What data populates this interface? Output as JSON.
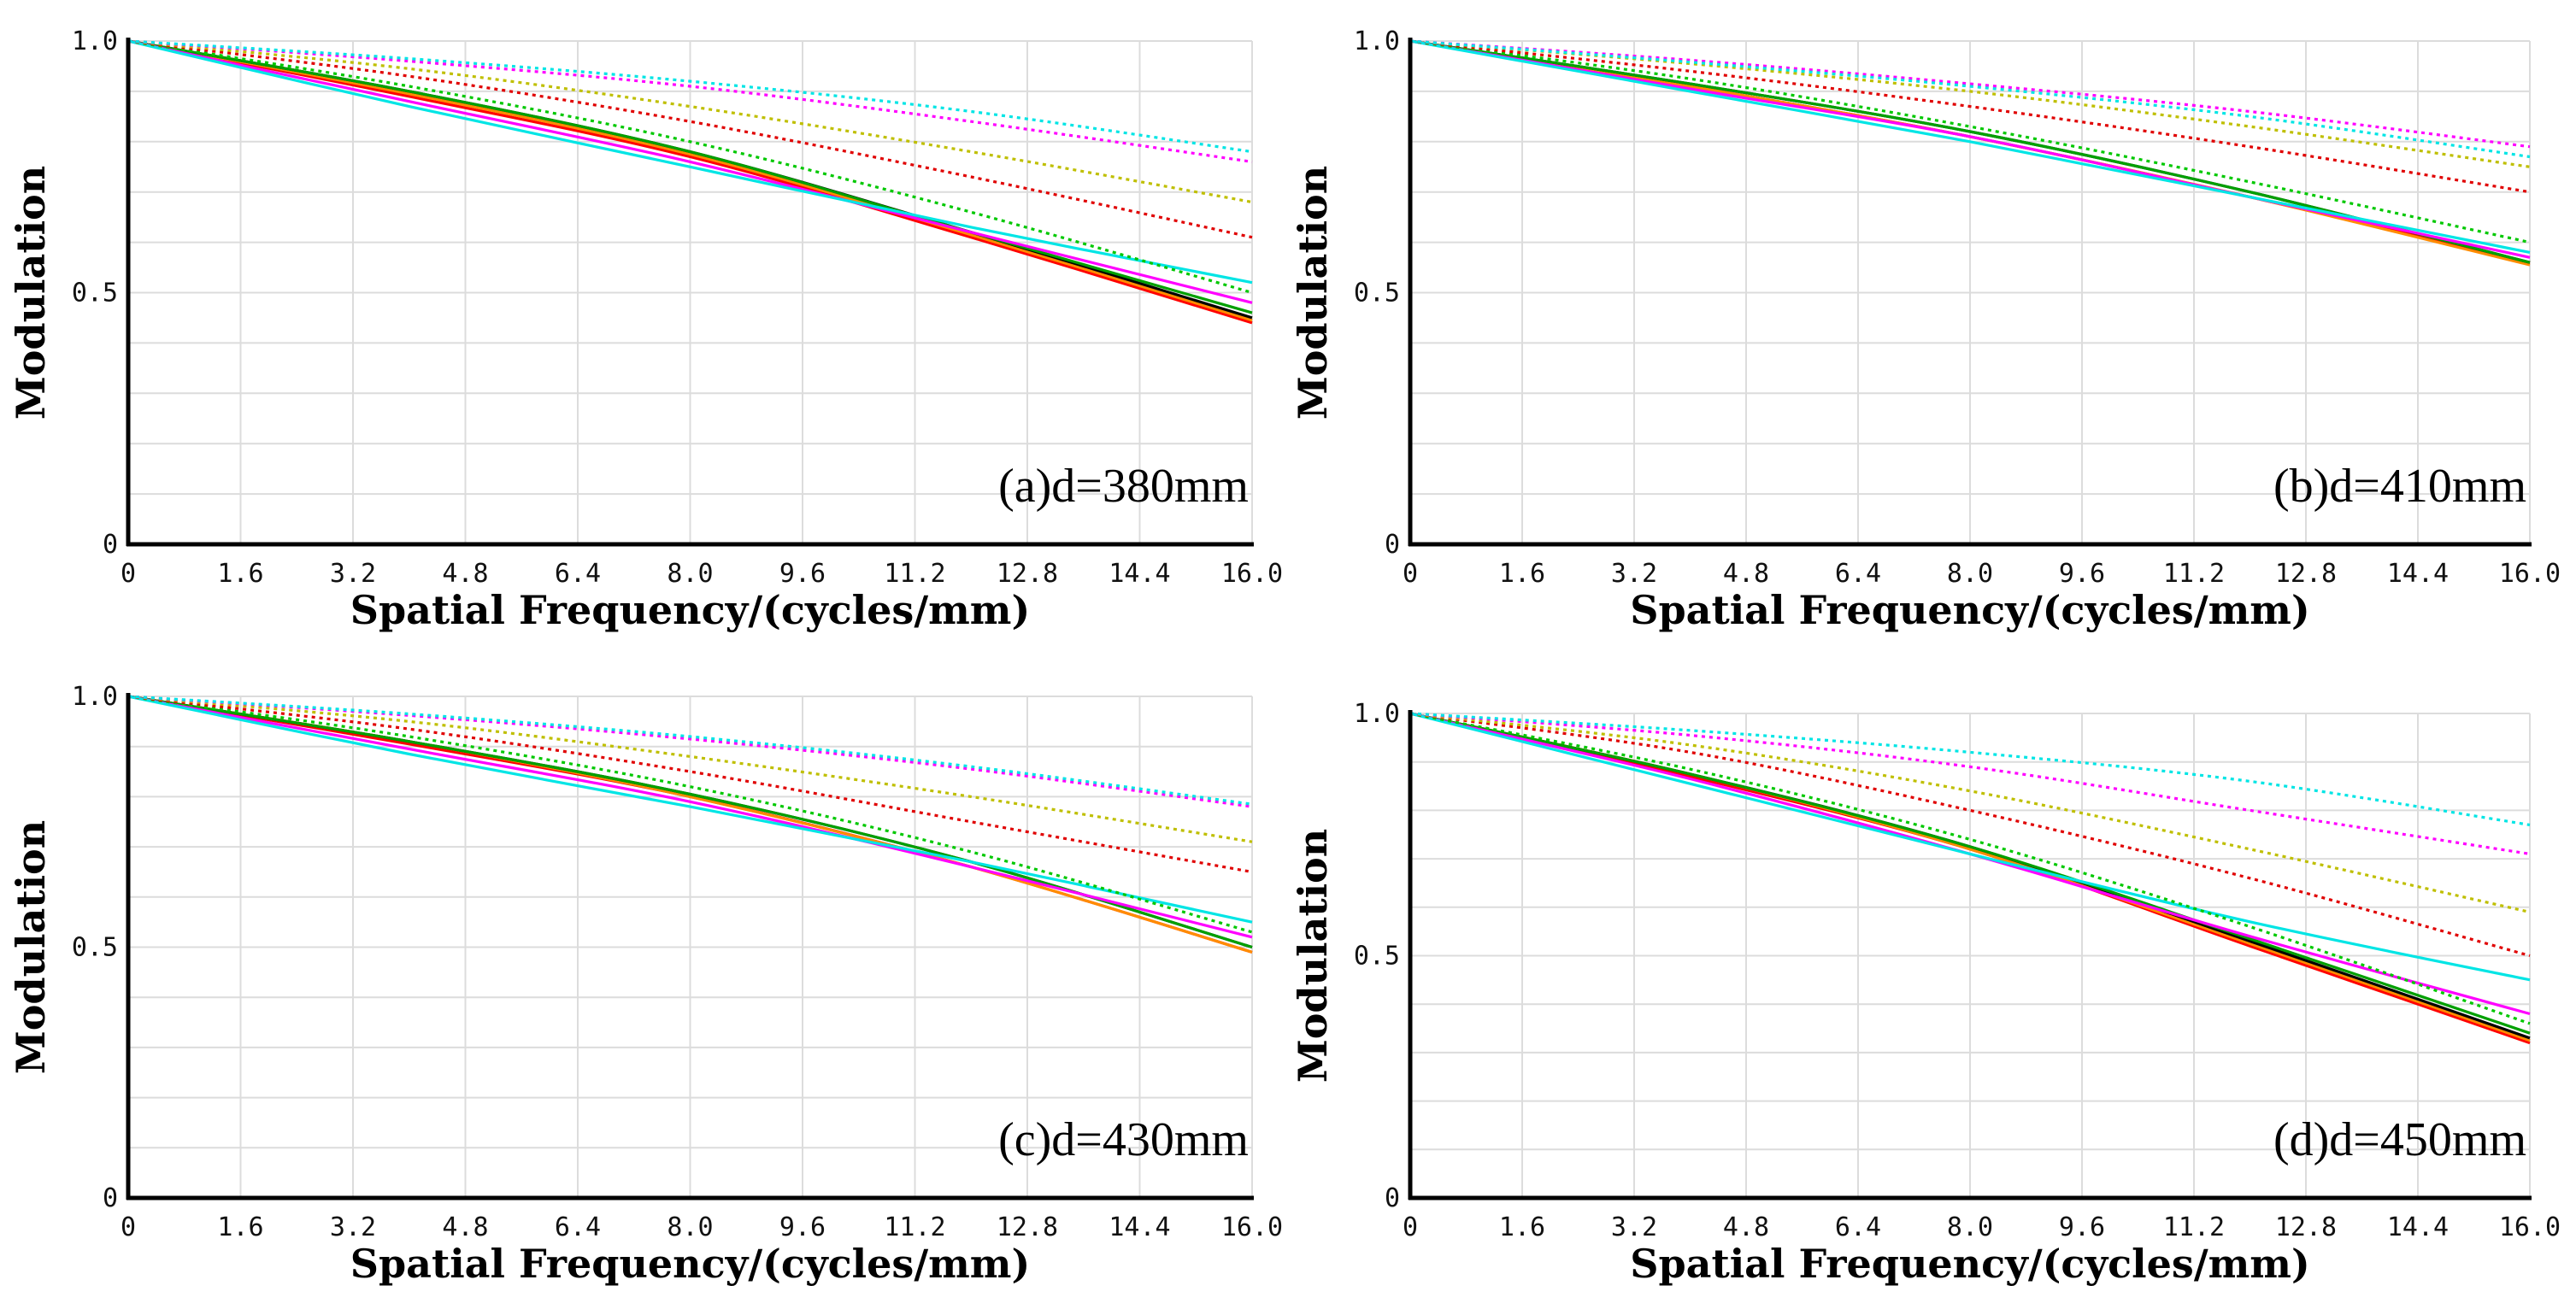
{
  "chart_data": [
    {
      "type": "line",
      "annotation": "(a)d=380mm",
      "xlabel": "Spatial Frequency/(cycles/mm)",
      "ylabel": "Modulation",
      "xlim": [
        0,
        16
      ],
      "ylim": [
        0,
        1
      ],
      "xticks": [
        "0",
        "1.6",
        "3.2",
        "4.8",
        "6.4",
        "8.0",
        "9.6",
        "11.2",
        "12.8",
        "14.4",
        "16.0"
      ],
      "yticks": [
        "0",
        "0.5",
        "1.0"
      ],
      "grid": true,
      "legend": "none",
      "series": [
        {
          "color": "#ff0000",
          "dash": false,
          "x": [
            0,
            4,
            8,
            12,
            16
          ],
          "y": [
            1.0,
            0.89,
            0.77,
            0.61,
            0.44
          ]
        },
        {
          "color": "#ff8c00",
          "dash": false,
          "x": [
            0,
            4,
            8,
            12,
            16
          ],
          "y": [
            1.0,
            0.895,
            0.775,
            0.615,
            0.445
          ]
        },
        {
          "color": "#000000",
          "dash": false,
          "x": [
            0,
            4,
            8,
            12,
            16
          ],
          "y": [
            1.0,
            0.9,
            0.78,
            0.62,
            0.45
          ]
        },
        {
          "color": "#00a000",
          "dash": false,
          "x": [
            0,
            4,
            8,
            12,
            16
          ],
          "y": [
            1.0,
            0.9,
            0.78,
            0.62,
            0.46
          ]
        },
        {
          "color": "#ff00ff",
          "dash": false,
          "x": [
            0,
            4,
            8,
            12,
            16
          ],
          "y": [
            1.0,
            0.88,
            0.76,
            0.62,
            0.48
          ]
        },
        {
          "color": "#00e5e5",
          "dash": false,
          "x": [
            0,
            4,
            8,
            12,
            16
          ],
          "y": [
            1.0,
            0.87,
            0.75,
            0.63,
            0.52
          ]
        },
        {
          "color": "#00c800",
          "dash": true,
          "x": [
            0,
            4,
            8,
            12,
            16
          ],
          "y": [
            1.0,
            0.91,
            0.8,
            0.66,
            0.5
          ]
        },
        {
          "color": "#e00000",
          "dash": true,
          "x": [
            0,
            4,
            8,
            12,
            16
          ],
          "y": [
            1.0,
            0.93,
            0.84,
            0.73,
            0.61
          ]
        },
        {
          "color": "#bfbf00",
          "dash": true,
          "x": [
            0,
            4,
            8,
            12,
            16
          ],
          "y": [
            1.0,
            0.945,
            0.87,
            0.78,
            0.68
          ]
        },
        {
          "color": "#ff00ff",
          "dash": true,
          "x": [
            0,
            4,
            8,
            12,
            16
          ],
          "y": [
            1.0,
            0.96,
            0.91,
            0.84,
            0.76
          ]
        },
        {
          "color": "#00e5e5",
          "dash": true,
          "x": [
            0,
            4,
            8,
            12,
            16
          ],
          "y": [
            1.0,
            0.965,
            0.92,
            0.86,
            0.78
          ]
        }
      ]
    },
    {
      "type": "line",
      "annotation": "(b)d=410mm",
      "xlabel": "Spatial Frequency/(cycles/mm)",
      "ylabel": "Modulation",
      "xlim": [
        0,
        16
      ],
      "ylim": [
        0,
        1
      ],
      "xticks": [
        "0",
        "1.6",
        "3.2",
        "4.8",
        "6.4",
        "8.0",
        "9.6",
        "11.2",
        "12.8",
        "14.4",
        "16.0"
      ],
      "yticks": [
        "0",
        "0.5",
        "1.0"
      ],
      "grid": true,
      "legend": "none",
      "series": [
        {
          "color": "#ff0000",
          "dash": false,
          "x": [
            0,
            4,
            8,
            12,
            16
          ],
          "y": [
            1.0,
            0.91,
            0.81,
            0.69,
            0.56
          ]
        },
        {
          "color": "#ff8c00",
          "dash": false,
          "x": [
            0,
            4,
            8,
            12,
            16
          ],
          "y": [
            1.0,
            0.91,
            0.81,
            0.69,
            0.555
          ]
        },
        {
          "color": "#000000",
          "dash": false,
          "x": [
            0,
            4,
            8,
            12,
            16
          ],
          "y": [
            1.0,
            0.915,
            0.82,
            0.7,
            0.56
          ]
        },
        {
          "color": "#00a000",
          "dash": false,
          "x": [
            0,
            4,
            8,
            12,
            16
          ],
          "y": [
            1.0,
            0.915,
            0.82,
            0.7,
            0.56
          ]
        },
        {
          "color": "#ff00ff",
          "dash": false,
          "x": [
            0,
            4,
            8,
            12,
            16
          ],
          "y": [
            1.0,
            0.905,
            0.81,
            0.69,
            0.57
          ]
        },
        {
          "color": "#00e5e5",
          "dash": false,
          "x": [
            0,
            4,
            8,
            12,
            16
          ],
          "y": [
            1.0,
            0.9,
            0.8,
            0.69,
            0.58
          ]
        },
        {
          "color": "#00c800",
          "dash": true,
          "x": [
            0,
            4,
            8,
            12,
            16
          ],
          "y": [
            1.0,
            0.925,
            0.83,
            0.72,
            0.6
          ]
        },
        {
          "color": "#e00000",
          "dash": true,
          "x": [
            0,
            4,
            8,
            12,
            16
          ],
          "y": [
            1.0,
            0.94,
            0.87,
            0.79,
            0.7
          ]
        },
        {
          "color": "#bfbf00",
          "dash": true,
          "x": [
            0,
            4,
            8,
            12,
            16
          ],
          "y": [
            1.0,
            0.955,
            0.9,
            0.83,
            0.75
          ]
        },
        {
          "color": "#ff00ff",
          "dash": true,
          "x": [
            0,
            4,
            8,
            12,
            16
          ],
          "y": [
            1.0,
            0.962,
            0.915,
            0.86,
            0.79
          ]
        },
        {
          "color": "#00e5e5",
          "dash": true,
          "x": [
            0,
            4,
            8,
            12,
            16
          ],
          "y": [
            1.0,
            0.958,
            0.91,
            0.85,
            0.77
          ]
        }
      ]
    },
    {
      "type": "line",
      "annotation": "(c)d=430mm",
      "xlabel": "Spatial Frequency/(cycles/mm)",
      "ylabel": "Modulation",
      "xlim": [
        0,
        16
      ],
      "ylim": [
        0,
        1
      ],
      "xticks": [
        "0",
        "1.6",
        "3.2",
        "4.8",
        "6.4",
        "8.0",
        "9.6",
        "11.2",
        "12.8",
        "14.4",
        "16.0"
      ],
      "yticks": [
        "0",
        "0.5",
        "1.0"
      ],
      "grid": true,
      "legend": "none",
      "series": [
        {
          "color": "#ff0000",
          "dash": false,
          "x": [
            0,
            4,
            8,
            12,
            16
          ],
          "y": [
            1.0,
            0.905,
            0.8,
            0.66,
            0.49
          ]
        },
        {
          "color": "#ff8c00",
          "dash": false,
          "x": [
            0,
            4,
            8,
            12,
            16
          ],
          "y": [
            1.0,
            0.91,
            0.8,
            0.66,
            0.49
          ]
        },
        {
          "color": "#000000",
          "dash": false,
          "x": [
            0,
            4,
            8,
            12,
            16
          ],
          "y": [
            1.0,
            0.91,
            0.805,
            0.67,
            0.5
          ]
        },
        {
          "color": "#00a000",
          "dash": false,
          "x": [
            0,
            4,
            8,
            12,
            16
          ],
          "y": [
            1.0,
            0.91,
            0.805,
            0.67,
            0.5
          ]
        },
        {
          "color": "#ff00ff",
          "dash": false,
          "x": [
            0,
            4,
            8,
            12,
            16
          ],
          "y": [
            1.0,
            0.895,
            0.79,
            0.66,
            0.52
          ]
        },
        {
          "color": "#00e5e5",
          "dash": false,
          "x": [
            0,
            4,
            8,
            12,
            16
          ],
          "y": [
            1.0,
            0.885,
            0.78,
            0.67,
            0.55
          ]
        },
        {
          "color": "#00c800",
          "dash": true,
          "x": [
            0,
            4,
            8,
            12,
            16
          ],
          "y": [
            1.0,
            0.92,
            0.82,
            0.69,
            0.53
          ]
        },
        {
          "color": "#e00000",
          "dash": true,
          "x": [
            0,
            4,
            8,
            12,
            16
          ],
          "y": [
            1.0,
            0.935,
            0.85,
            0.75,
            0.65
          ]
        },
        {
          "color": "#bfbf00",
          "dash": true,
          "x": [
            0,
            4,
            8,
            12,
            16
          ],
          "y": [
            1.0,
            0.95,
            0.88,
            0.8,
            0.71
          ]
        },
        {
          "color": "#ff00ff",
          "dash": true,
          "x": [
            0,
            4,
            8,
            12,
            16
          ],
          "y": [
            1.0,
            0.962,
            0.915,
            0.855,
            0.78
          ]
        },
        {
          "color": "#00e5e5",
          "dash": true,
          "x": [
            0,
            4,
            8,
            12,
            16
          ],
          "y": [
            1.0,
            0.965,
            0.92,
            0.86,
            0.785
          ]
        }
      ]
    },
    {
      "type": "line",
      "annotation": "(d)d=450mm",
      "xlabel": "Spatial Frequency/(cycles/mm)",
      "ylabel": "Modulation",
      "xlim": [
        0,
        16
      ],
      "ylim": [
        0,
        1
      ],
      "xticks": [
        "0",
        "1.6",
        "3.2",
        "4.8",
        "6.4",
        "8.0",
        "9.6",
        "11.2",
        "12.8",
        "14.4",
        "16.0"
      ],
      "yticks": [
        "0",
        "0.5",
        "1.0"
      ],
      "grid": true,
      "legend": "none",
      "series": [
        {
          "color": "#ff0000",
          "dash": false,
          "x": [
            0,
            4,
            8,
            12,
            16
          ],
          "y": [
            1.0,
            0.87,
            0.72,
            0.52,
            0.32
          ]
        },
        {
          "color": "#ff8c00",
          "dash": false,
          "x": [
            0,
            4,
            8,
            12,
            16
          ],
          "y": [
            1.0,
            0.875,
            0.72,
            0.525,
            0.325
          ]
        },
        {
          "color": "#000000",
          "dash": false,
          "x": [
            0,
            4,
            8,
            12,
            16
          ],
          "y": [
            1.0,
            0.875,
            0.725,
            0.53,
            0.33
          ]
        },
        {
          "color": "#00a000",
          "dash": false,
          "x": [
            0,
            4,
            8,
            12,
            16
          ],
          "y": [
            1.0,
            0.875,
            0.725,
            0.535,
            0.34
          ]
        },
        {
          "color": "#ff00ff",
          "dash": false,
          "x": [
            0,
            4,
            8,
            12,
            16
          ],
          "y": [
            1.0,
            0.865,
            0.71,
            0.54,
            0.38
          ]
        },
        {
          "color": "#00e5e5",
          "dash": false,
          "x": [
            0,
            4,
            8,
            12,
            16
          ],
          "y": [
            1.0,
            0.855,
            0.71,
            0.57,
            0.45
          ]
        },
        {
          "color": "#00c800",
          "dash": true,
          "x": [
            0,
            4,
            8,
            12,
            16
          ],
          "y": [
            1.0,
            0.885,
            0.74,
            0.56,
            0.36
          ]
        },
        {
          "color": "#e00000",
          "dash": true,
          "x": [
            0,
            4,
            8,
            12,
            16
          ],
          "y": [
            1.0,
            0.92,
            0.8,
            0.66,
            0.5
          ]
        },
        {
          "color": "#bfbf00",
          "dash": true,
          "x": [
            0,
            4,
            8,
            12,
            16
          ],
          "y": [
            1.0,
            0.935,
            0.84,
            0.72,
            0.59
          ]
        },
        {
          "color": "#ff00ff",
          "dash": true,
          "x": [
            0,
            4,
            8,
            12,
            16
          ],
          "y": [
            1.0,
            0.955,
            0.89,
            0.8,
            0.71
          ]
        },
        {
          "color": "#00e5e5",
          "dash": true,
          "x": [
            0,
            4,
            8,
            12,
            16
          ],
          "y": [
            1.0,
            0.965,
            0.92,
            0.86,
            0.77
          ]
        }
      ]
    }
  ]
}
